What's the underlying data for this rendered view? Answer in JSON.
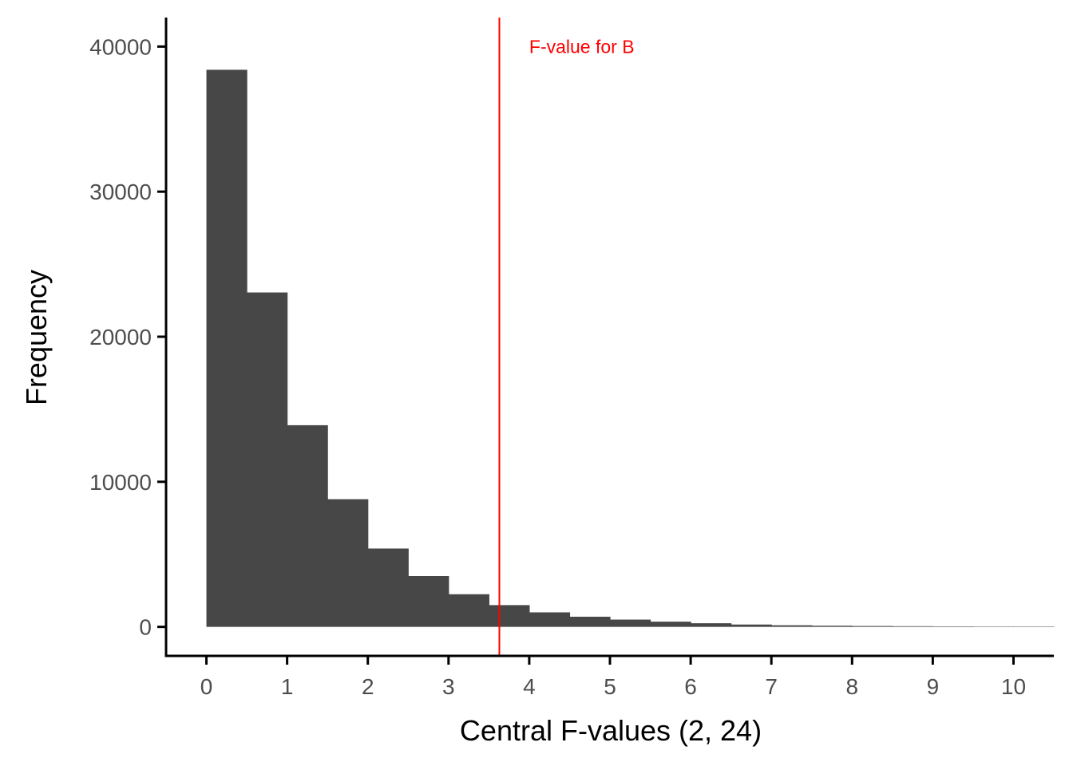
{
  "chart_data": {
    "type": "bar",
    "subtype": "histogram",
    "bin_width": 0.5,
    "bin_starts": [
      0,
      0.5,
      1,
      1.5,
      2,
      2.5,
      3,
      3.5,
      4,
      4.5,
      5,
      5.5,
      6,
      6.5,
      7,
      7.5,
      8,
      8.5,
      9,
      9.5,
      10
    ],
    "values": [
      38400,
      23050,
      13900,
      8800,
      5400,
      3500,
      2250,
      1500,
      1000,
      700,
      500,
      360,
      250,
      160,
      110,
      80,
      60,
      45,
      35,
      25,
      18
    ],
    "xlabel": "Central F-values (2, 24)",
    "ylabel": "Frequency",
    "xlim": [
      -0.5,
      10.5
    ],
    "ylim": [
      -2000,
      42000
    ],
    "xticks": [
      0,
      1,
      2,
      3,
      4,
      5,
      6,
      7,
      8,
      9,
      10
    ],
    "yticks": [
      0,
      10000,
      20000,
      30000,
      40000
    ],
    "grid": false,
    "bar_color": "#474747",
    "reference_line": {
      "x": 3.63,
      "label": "F-value for B",
      "label_x": 4,
      "label_y": 40000,
      "color": "#ff0000"
    }
  }
}
